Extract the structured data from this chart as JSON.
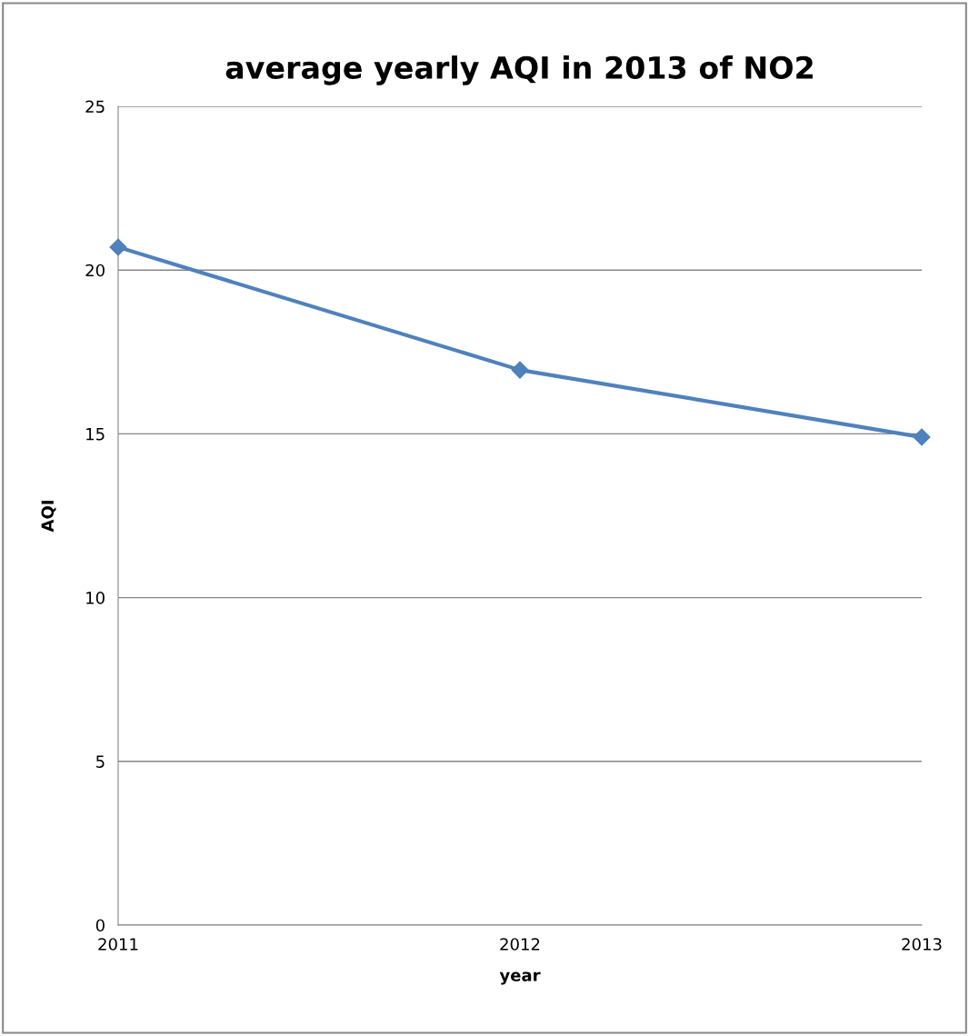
{
  "chart_data": {
    "type": "line",
    "title": "average yearly AQI in 2013 of NO2",
    "xlabel": "year",
    "ylabel": "AQI",
    "x": [
      2011,
      2012,
      2013
    ],
    "series": [
      {
        "color": "#4f81bd",
        "values": [
          20.7,
          16.95,
          14.9
        ]
      }
    ],
    "xlim": [
      2011,
      2013
    ],
    "xticks": [
      2011,
      2012,
      2013
    ],
    "ylim": [
      0,
      25
    ],
    "yticks": [
      0,
      5,
      10,
      15,
      20,
      25
    ],
    "grid": "y",
    "marker": "diamond",
    "line_style": "solid"
  }
}
